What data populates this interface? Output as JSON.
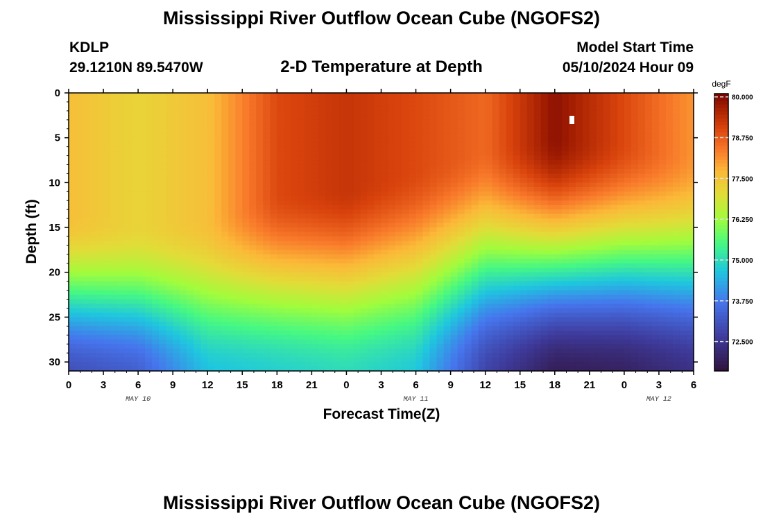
{
  "title": "Mississippi River Outflow Ocean Cube (NGOFS2)",
  "footer_title": "Mississippi River Outflow Ocean Cube (NGOFS2)",
  "station": {
    "id": "KDLP",
    "coords": "29.1210N  89.5470W"
  },
  "model_start": {
    "label": "Model Start Time",
    "value": "05/10/2024 Hour 09"
  },
  "chart_data": {
    "type": "heatmap",
    "title": "2-D Temperature at Depth",
    "xlabel": "Forecast Time(Z)",
    "ylabel": "Depth (ft)",
    "x_ticks": [
      "0",
      "3",
      "6",
      "9",
      "12",
      "15",
      "18",
      "21",
      "0",
      "3",
      "6",
      "9",
      "12",
      "15",
      "18",
      "21",
      "0",
      "3",
      "6"
    ],
    "x_range_hours": [
      0,
      54
    ],
    "y_ticks": [
      0,
      5,
      10,
      15,
      20,
      25,
      30
    ],
    "y_range_ft": [
      0,
      31
    ],
    "date_labels": [
      {
        "text": "MAY 10",
        "hour": 6
      },
      {
        "text": "MAY 11",
        "hour": 30
      },
      {
        "text": "MAY 12",
        "hour": 51
      }
    ],
    "colorbar": {
      "unit": "degF",
      "ticks": [
        "80.000",
        "78.750",
        "77.500",
        "76.250",
        "75.000",
        "73.750",
        "72.500"
      ],
      "tick_values": [
        80.0,
        78.75,
        77.5,
        76.25,
        75.0,
        73.75,
        72.5
      ],
      "range": [
        71.6,
        80.1
      ]
    },
    "surface_temp_degF": {
      "hours": [
        0,
        6,
        12,
        18,
        24,
        30,
        36,
        42,
        48,
        54
      ],
      "values": [
        77.6,
        77.2,
        77.6,
        79.0,
        79.3,
        79.0,
        78.6,
        79.9,
        79.0,
        78.1
      ]
    },
    "warm_layer_base_ft": {
      "hours": [
        0,
        6,
        12,
        18,
        24,
        30,
        36,
        42,
        48,
        54
      ],
      "values": [
        21.5,
        22.5,
        22.0,
        19.0,
        18.5,
        16.5,
        14.0,
        13.0,
        13.5,
        15.0
      ]
    },
    "bottom_temp_degF": {
      "hours": [
        0,
        6,
        12,
        18,
        24,
        30,
        36,
        42,
        48,
        54
      ],
      "values": [
        73.0,
        73.3,
        74.6,
        74.8,
        75.0,
        74.7,
        72.8,
        71.9,
        72.0,
        72.4
      ]
    }
  }
}
